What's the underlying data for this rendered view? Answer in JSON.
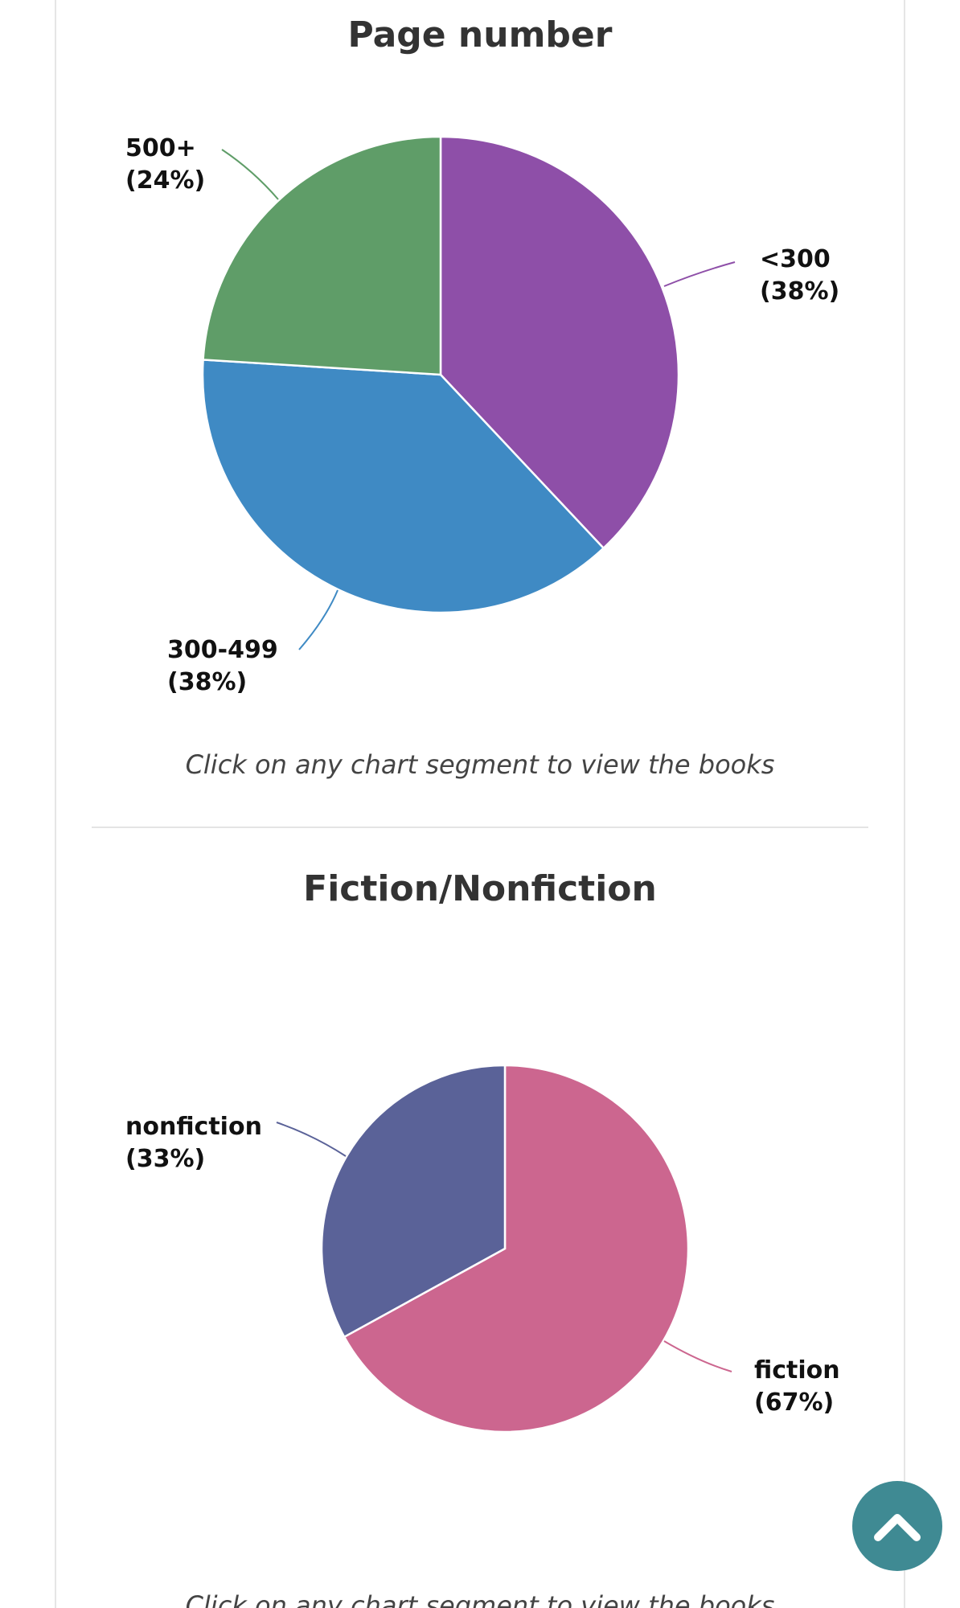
{
  "chart_data": [
    {
      "type": "pie",
      "title": "Page number",
      "slices": [
        {
          "label": "<300",
          "percent_label": "(38%)",
          "value": 38,
          "color": "#8e4fa8"
        },
        {
          "label": "300-499",
          "percent_label": "(38%)",
          "value": 38,
          "color": "#3f8ac4"
        },
        {
          "label": "500+",
          "percent_label": "(24%)",
          "value": 24,
          "color": "#5f9d68"
        }
      ],
      "note": "Click on any chart segment to view the books"
    },
    {
      "type": "pie",
      "title": "Fiction/Nonfiction",
      "slices": [
        {
          "label": "fiction",
          "percent_label": "(67%)",
          "value": 67,
          "color": "#cc668f"
        },
        {
          "label": "nonfiction",
          "percent_label": "(33%)",
          "value": 33,
          "color": "#5a6298"
        }
      ],
      "note": "Click on any chart segment to view the books"
    }
  ],
  "scroll_top": {
    "icon": "chevron-up-icon",
    "color": "#3f8a93"
  }
}
